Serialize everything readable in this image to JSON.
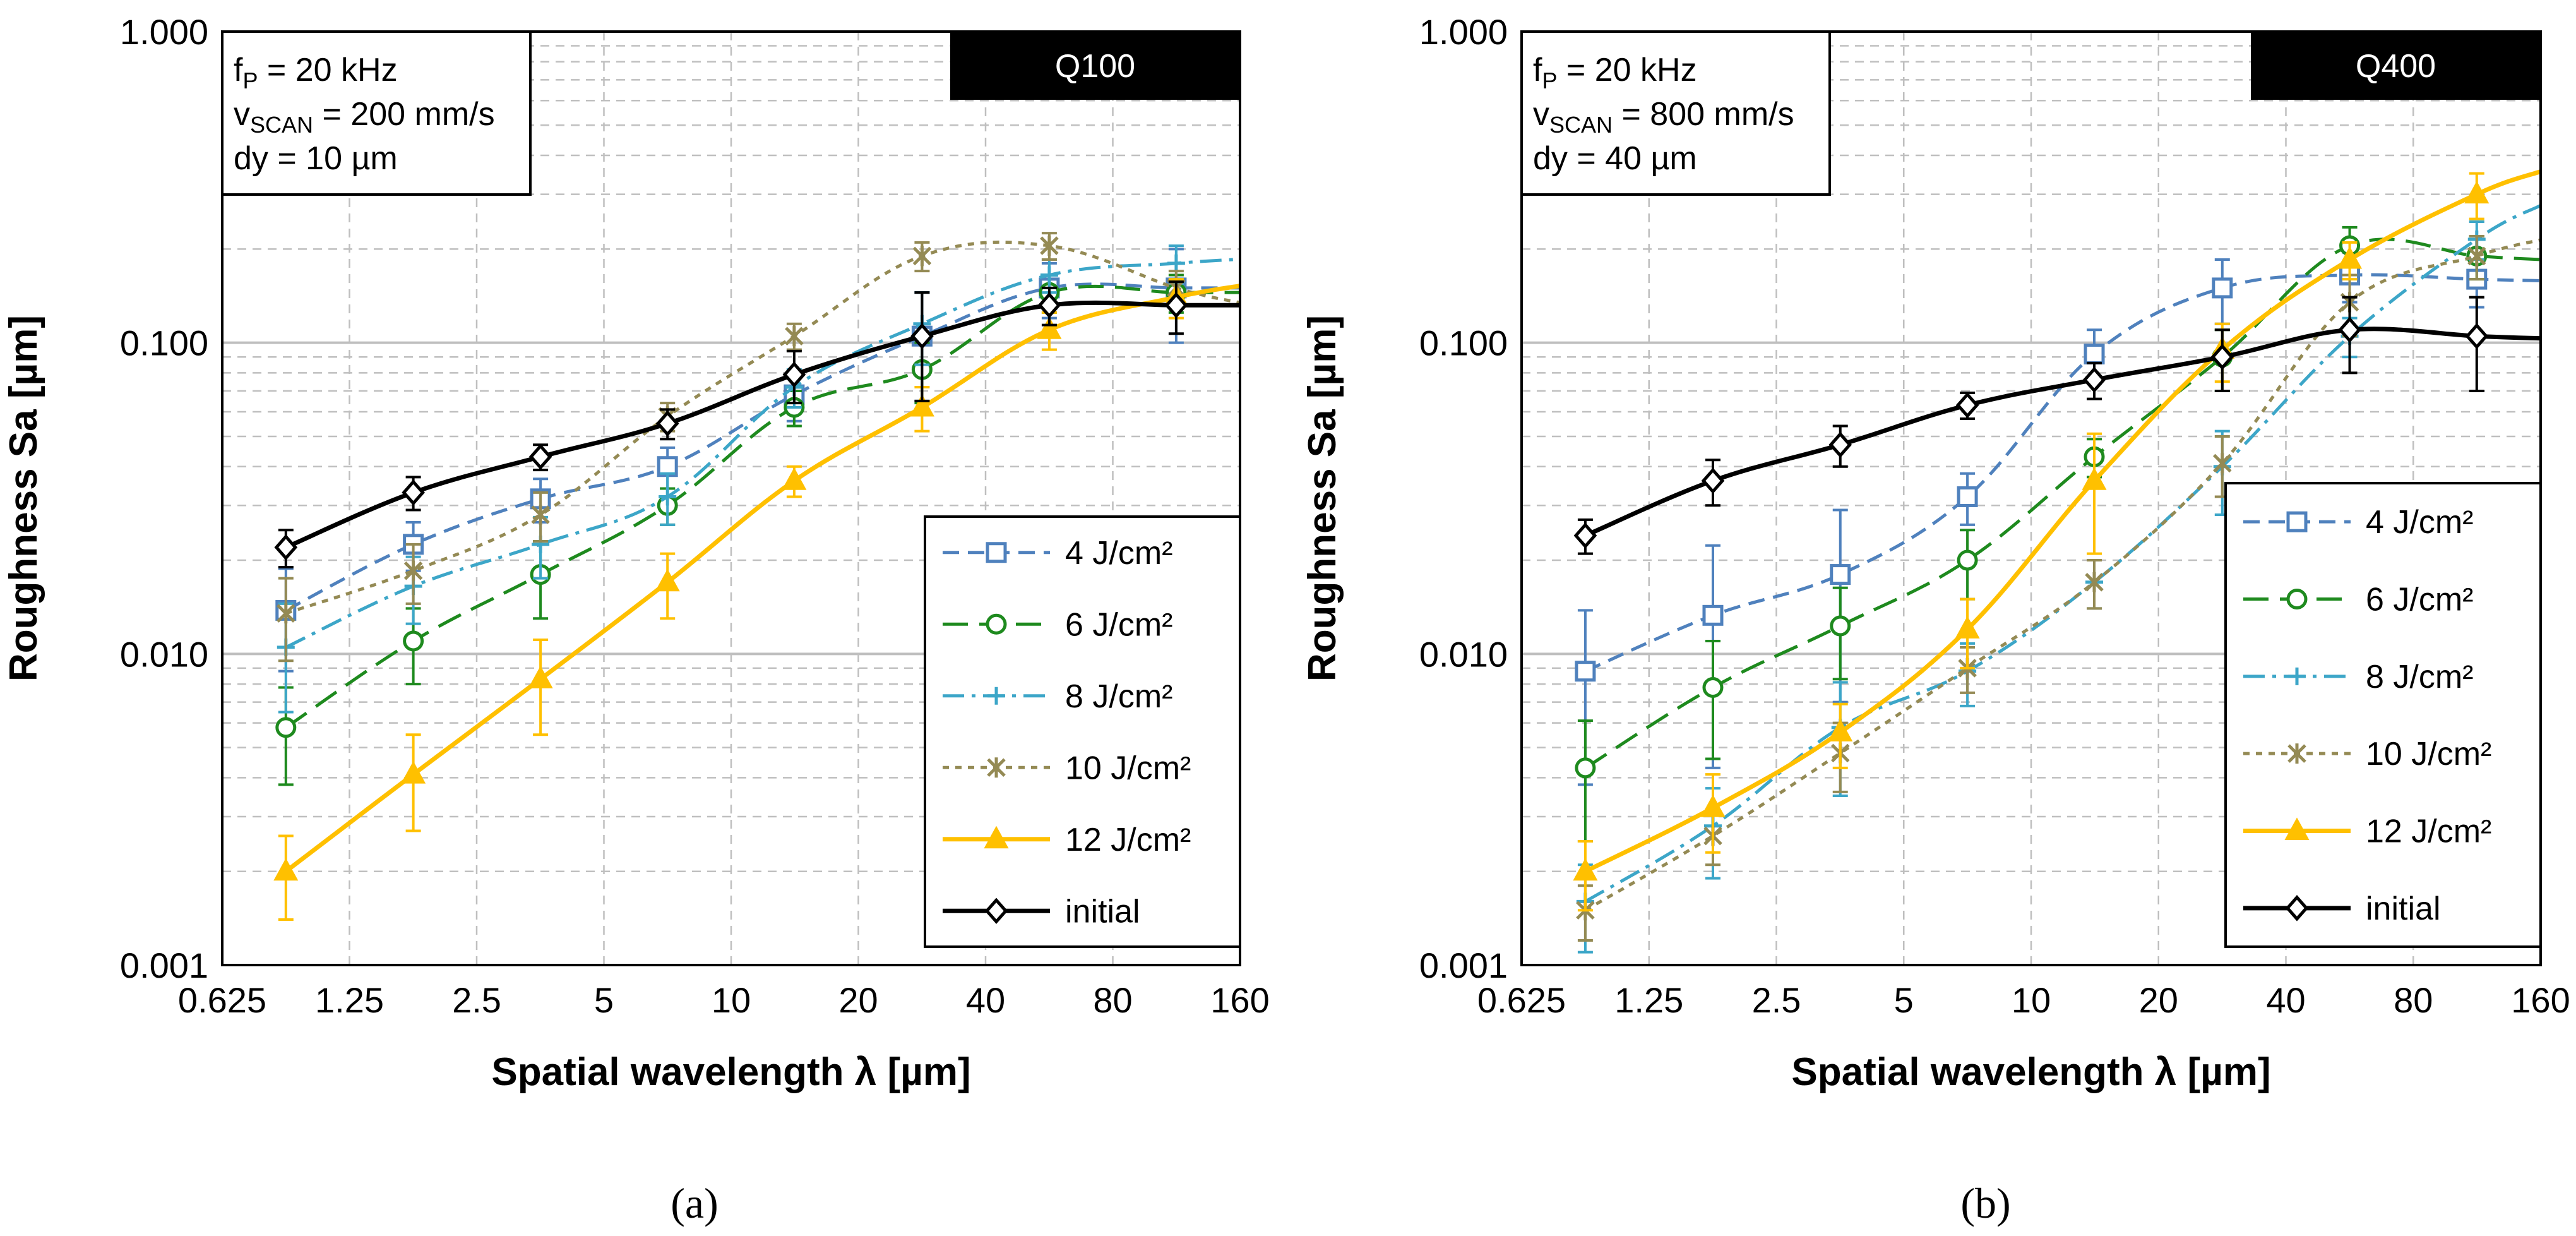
{
  "chart_data": [
    {
      "type": "line",
      "panel_label": "(a)",
      "tag": "Q100",
      "info": {
        "f_label": "f",
        "f_sub": "P",
        "f_value": " = 20 kHz",
        "v_label": "v",
        "v_sub": "SCAN",
        "v_value": " = 200 mm/s",
        "dy": "dy = 10 µm"
      },
      "xlabel": "Spatial wavelength λ [µm]",
      "ylabel": "Roughness Sa [µm]",
      "xscale": "log2",
      "yscale": "log10",
      "xlim": [
        0.625,
        160
      ],
      "ylim": [
        0.001,
        1
      ],
      "xticks": [
        "0.625",
        "1.25",
        "2.5",
        "5",
        "10",
        "20",
        "40",
        "80",
        "160"
      ],
      "yticks": [
        "0.001",
        "0.010",
        "0.100",
        "1.000"
      ],
      "legend_position": "bottom-right",
      "x": [
        0.884,
        1.77,
        3.54,
        7.07,
        14.1,
        28.3,
        56.6,
        113
      ],
      "series": [
        {
          "name": "4 J/cm²",
          "style": "dashed",
          "marker": "square",
          "color": "#4f81bd",
          "values": [
            0.0138,
            0.0225,
            0.0315,
            0.04,
            0.068,
            0.105,
            0.15,
            0.15
          ],
          "err": [
            0.005,
            0.004,
            0.005,
            0.006,
            0.012,
            0.04,
            0.03,
            0.05
          ]
        },
        {
          "name": "6 J/cm²",
          "style": "longdash",
          "marker": "circle",
          "color": "#1e8a1e",
          "values": [
            0.0058,
            0.011,
            0.018,
            0.03,
            0.062,
            0.082,
            0.145,
            0.145
          ],
          "err": [
            0.002,
            0.003,
            0.005,
            0.004,
            0.008,
            0.018,
            0.02,
            0.02
          ]
        },
        {
          "name": "8 J/cm²",
          "style": "dashdot",
          "marker": "plus",
          "color": "#3ca6c8",
          "values": [
            0.0105,
            0.0165,
            0.0225,
            0.032,
            0.072,
            0.115,
            0.165,
            0.18
          ],
          "err": [
            0.004,
            0.004,
            0.005,
            0.006,
            0.01,
            0.03,
            0.02,
            0.025
          ]
        },
        {
          "name": "10 J/cm²",
          "style": "dotted",
          "marker": "asterisk",
          "color": "#948a54",
          "values": [
            0.0135,
            0.0185,
            0.028,
            0.058,
            0.105,
            0.19,
            0.205,
            0.15
          ],
          "err": [
            0.004,
            0.004,
            0.005,
            0.006,
            0.01,
            0.02,
            0.02,
            0.02
          ]
        },
        {
          "name": "12 J/cm²",
          "style": "solid",
          "marker": "triangle",
          "color": "#ffc000",
          "values": [
            0.002,
            0.0041,
            0.0083,
            0.017,
            0.036,
            0.062,
            0.11,
            0.14
          ],
          "err": [
            0.0006,
            0.0014,
            0.0028,
            0.004,
            0.004,
            0.01,
            0.015,
            0.02
          ]
        },
        {
          "name": "initial",
          "style": "solid",
          "marker": "diamond",
          "color": "#000000",
          "values": [
            0.022,
            0.033,
            0.043,
            0.055,
            0.079,
            0.105,
            0.132,
            0.132
          ],
          "err": [
            0.003,
            0.004,
            0.004,
            0.006,
            0.015,
            0.04,
            0.018,
            0.025
          ]
        }
      ]
    },
    {
      "type": "line",
      "panel_label": "(b)",
      "tag": "Q400",
      "info": {
        "f_label": "f",
        "f_sub": "P",
        "f_value": " = 20 kHz",
        "v_label": "v",
        "v_sub": "SCAN",
        "v_value": " = 800 mm/s",
        "dy": "dy = 40 µm"
      },
      "xlabel": "Spatial wavelength λ [µm]",
      "ylabel": "Roughness Sa [µm]",
      "xscale": "log2",
      "yscale": "log10",
      "xlim": [
        0.625,
        160
      ],
      "ylim": [
        0.001,
        1
      ],
      "xticks": [
        "0.625",
        "1.25",
        "2.5",
        "5",
        "10",
        "20",
        "40",
        "80",
        "160"
      ],
      "yticks": [
        "0.001",
        "0.010",
        "0.100",
        "1.000"
      ],
      "legend_position": "bottom-right",
      "x": [
        0.884,
        1.77,
        3.54,
        7.07,
        14.1,
        28.3,
        56.6,
        113
      ],
      "series": [
        {
          "name": "4 J/cm²",
          "style": "dashed",
          "marker": "square",
          "color": "#4f81bd",
          "values": [
            0.0088,
            0.0133,
            0.018,
            0.032,
            0.092,
            0.15,
            0.165,
            0.16
          ],
          "err": [
            0.005,
            0.009,
            0.011,
            0.006,
            0.018,
            0.035,
            0.03,
            0.03
          ]
        },
        {
          "name": "6 J/cm²",
          "style": "longdash",
          "marker": "circle",
          "color": "#1e8a1e",
          "values": [
            0.0043,
            0.0078,
            0.0123,
            0.02,
            0.043,
            0.09,
            0.205,
            0.19
          ],
          "err": [
            0.0018,
            0.0032,
            0.004,
            0.005,
            0.006,
            0.02,
            0.03,
            0.03
          ]
        },
        {
          "name": "8 J/cm²",
          "style": "dashdot",
          "marker": "plus",
          "color": "#3ca6c8",
          "values": [
            0.0016,
            0.0028,
            0.0058,
            0.0088,
            0.017,
            0.04,
            0.105,
            0.215
          ],
          "err": [
            0.0005,
            0.0009,
            0.0023,
            0.002,
            0.003,
            0.012,
            0.015,
            0.03
          ]
        },
        {
          "name": "10 J/cm²",
          "style": "dotted",
          "marker": "asterisk",
          "color": "#948a54",
          "values": [
            0.0015,
            0.0026,
            0.0048,
            0.009,
            0.017,
            0.041,
            0.135,
            0.19
          ],
          "err": [
            0.0003,
            0.0005,
            0.0012,
            0.0015,
            0.003,
            0.009,
            0.03,
            0.03
          ]
        },
        {
          "name": "12 J/cm²",
          "style": "solid",
          "marker": "triangle",
          "color": "#ffc000",
          "values": [
            0.002,
            0.0032,
            0.0056,
            0.012,
            0.036,
            0.095,
            0.185,
            0.3
          ],
          "err": [
            0.0005,
            0.0009,
            0.0013,
            0.003,
            0.015,
            0.02,
            0.025,
            0.05
          ]
        },
        {
          "name": "initial",
          "style": "solid",
          "marker": "diamond",
          "color": "#000000",
          "values": [
            0.024,
            0.036,
            0.047,
            0.063,
            0.076,
            0.09,
            0.11,
            0.105
          ],
          "err": [
            0.003,
            0.006,
            0.007,
            0.006,
            0.01,
            0.02,
            0.03,
            0.035
          ]
        }
      ]
    }
  ]
}
